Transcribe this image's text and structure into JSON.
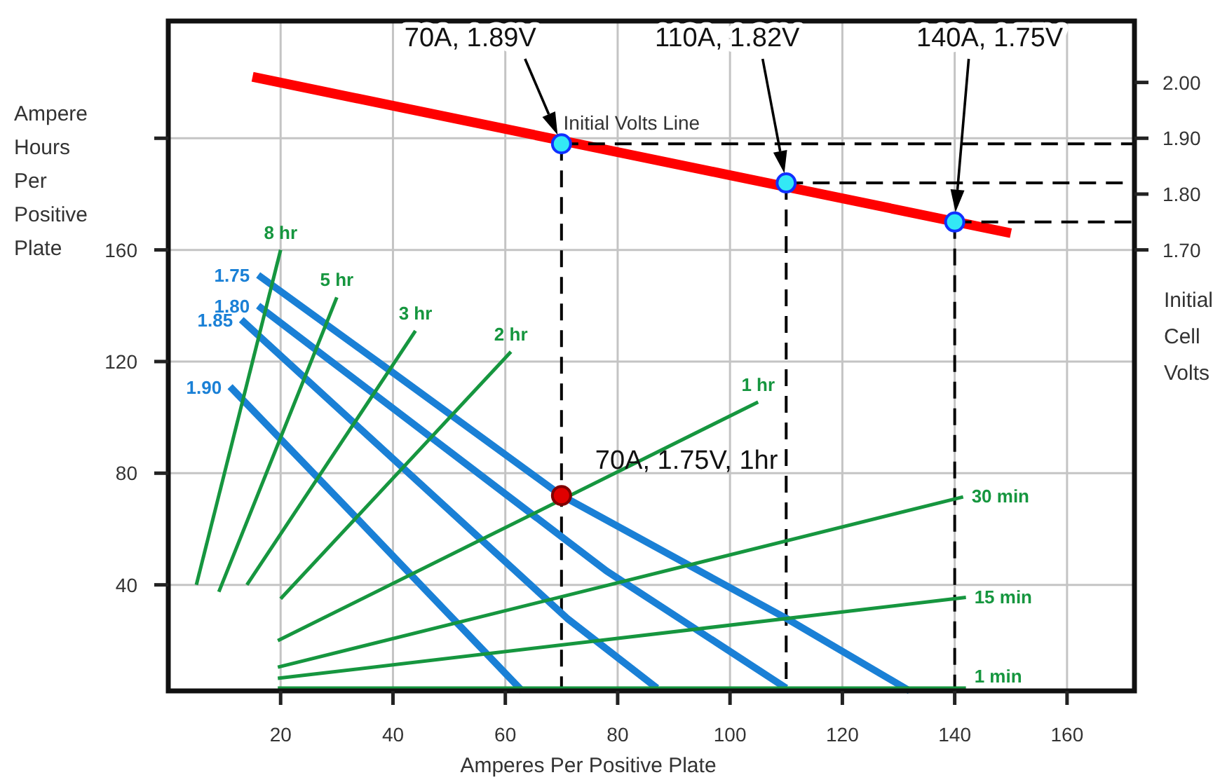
{
  "chart_data": {
    "type": "line",
    "xlabel": "Amperes Per Positive Plate",
    "ylabel": "Ampere Hours Per Positive Plate",
    "y2label": "Initial Cell Volts",
    "xlim": [
      0,
      172
    ],
    "xticks": [
      20,
      40,
      60,
      80,
      100,
      120,
      140,
      160
    ],
    "ylim": [
      2,
      242
    ],
    "yticks": [
      40,
      80,
      120,
      160,
      {
        "value": 200,
        "label": null
      }
    ],
    "y2lim": [
      0.91,
      2.11
    ],
    "y2ticks": [
      {
        "value": 1.7,
        "label": "1.70"
      },
      {
        "value": 1.8,
        "label": "1.80"
      },
      {
        "value": 1.9,
        "label": "1.90"
      },
      {
        "value": 2.0,
        "label": "2.00"
      }
    ],
    "grid": true,
    "legend": false,
    "series": [
      {
        "name": "Initial Volts Line",
        "axis": "y2",
        "color": "#ff0000",
        "x": [
          15,
          150
        ],
        "values": [
          2.01,
          1.73
        ]
      },
      {
        "type": "line",
        "axis": "y2",
        "line_style": "dashed",
        "color": "#000000",
        "x": [
          70,
          70
        ],
        "values": [
          1.89,
          0.91
        ]
      },
      {
        "type": "line",
        "axis": "y2",
        "line_style": "dashed",
        "color": "#000000",
        "x": [
          110,
          110
        ],
        "values": [
          1.82,
          0.91
        ]
      },
      {
        "type": "line",
        "axis": "y2",
        "line_style": "dashed",
        "color": "#000000",
        "x": [
          140,
          140
        ],
        "values": [
          1.75,
          0.91
        ]
      },
      {
        "type": "line",
        "axis": "y2",
        "line_style": "dashed",
        "color": "#000000",
        "x": [
          70,
          172
        ],
        "values": [
          1.89,
          1.89
        ]
      },
      {
        "type": "line",
        "axis": "y2",
        "line_style": "dashed",
        "color": "#000000",
        "x": [
          110,
          172
        ],
        "values": [
          1.82,
          1.82
        ]
      },
      {
        "type": "line",
        "axis": "y2",
        "line_style": "dashed",
        "color": "#000000",
        "x": [
          140,
          172
        ],
        "values": [
          1.75,
          1.75
        ]
      },
      {
        "name": "1.75",
        "type": "line",
        "color": "#1a80d6",
        "x": [
          16,
          40,
          70,
          110,
          132
        ],
        "values": [
          151,
          116,
          72,
          28,
          2
        ]
      },
      {
        "name": "1.80",
        "type": "line",
        "color": "#1a80d6",
        "x": [
          16,
          78,
          110
        ],
        "values": [
          140,
          45,
          3
        ]
      },
      {
        "name": "1.85",
        "type": "line",
        "color": "#1a80d6",
        "x": [
          13,
          71,
          87
        ],
        "values": [
          135,
          28,
          3
        ]
      },
      {
        "name": "1.90",
        "type": "line",
        "color": "#1a80d6",
        "x": [
          11,
          33.5,
          63
        ],
        "values": [
          111,
          64,
          2
        ]
      },
      {
        "name": "8 hr",
        "type": "line",
        "color": "#16963f",
        "x": [
          5,
          20
        ],
        "values": [
          40,
          160
        ]
      },
      {
        "name": "5 hr",
        "type": "line",
        "color": "#16963f",
        "x": [
          9,
          30
        ],
        "values": [
          37.5,
          143
        ]
      },
      {
        "name": "3 hr",
        "type": "line",
        "color": "#16963f",
        "x": [
          14,
          44
        ],
        "values": [
          40,
          131
        ]
      },
      {
        "name": "2 hr",
        "type": "line",
        "color": "#16963f",
        "x": [
          20,
          61
        ],
        "values": [
          35,
          123.5
        ]
      },
      {
        "name": "1 hr",
        "type": "line",
        "color": "#16963f",
        "x": [
          19.5,
          105
        ],
        "values": [
          20,
          105.5
        ]
      },
      {
        "name": "30 min",
        "type": "line",
        "color": "#16963f",
        "x": [
          19.5,
          141.5
        ],
        "values": [
          10.5,
          71.5
        ]
      },
      {
        "name": "15 min",
        "type": "line",
        "color": "#16963f",
        "x": [
          19.5,
          142
        ],
        "values": [
          6.5,
          35.5
        ]
      },
      {
        "name": "1 min",
        "type": "line",
        "color": "#16963f",
        "x": [
          19.5,
          142
        ],
        "values": [
          3,
          3
        ]
      },
      {
        "type": "scatter",
        "axis": "y2",
        "marker": "circle",
        "color": "#33e8f5",
        "x": [
          70,
          110,
          140
        ],
        "values": [
          1.89,
          1.82,
          1.75
        ]
      },
      {
        "type": "scatter",
        "marker": "circle",
        "color": "#e00000",
        "x": [
          70
        ],
        "values": [
          72
        ]
      }
    ],
    "annotations": [
      "70A, 1.89V",
      "110A, 1.82V",
      "140A, 1.75V",
      {
        "text": "70A, 1.75V, 1hr",
        "x": 70,
        "y": 72
      }
    ]
  }
}
